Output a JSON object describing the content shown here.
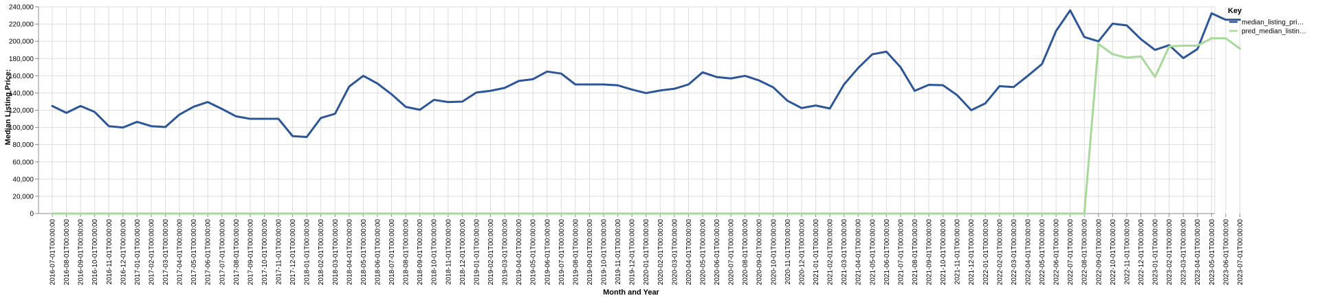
{
  "chart_data": {
    "type": "line",
    "xlabel": "Month and Year",
    "ylabel": "Median Listing Price:",
    "ylim": [
      0,
      240000
    ],
    "yticks": [
      "0",
      "20,000",
      "40,000",
      "60,000",
      "80,000",
      "100,000",
      "120,000",
      "140,000",
      "160,000",
      "180,000",
      "200,000",
      "220,000",
      "240,000"
    ],
    "grid": true,
    "legend": {
      "title": "Key",
      "position": "right"
    },
    "x": [
      "2016-07-01T00:00:00",
      "2016-08-01T00:00:00",
      "2016-09-01T00:00:00",
      "2016-10-01T00:00:00",
      "2016-11-01T00:00:00",
      "2016-12-01T00:00:00",
      "2017-01-01T00:00:00",
      "2017-02-01T00:00:00",
      "2017-03-01T00:00:00",
      "2017-04-01T00:00:00",
      "2017-05-01T00:00:00",
      "2017-06-01T00:00:00",
      "2017-07-01T00:00:00",
      "2017-08-01T00:00:00",
      "2017-09-01T00:00:00",
      "2017-10-01T00:00:00",
      "2017-11-01T00:00:00",
      "2017-12-01T00:00:00",
      "2018-01-01T00:00:00",
      "2018-02-01T00:00:00",
      "2018-03-01T00:00:00",
      "2018-04-01T00:00:00",
      "2018-05-01T00:00:00",
      "2018-06-01T00:00:00",
      "2018-07-01T00:00:00",
      "2018-08-01T00:00:00",
      "2018-09-01T00:00:00",
      "2018-10-01T00:00:00",
      "2018-11-01T00:00:00",
      "2018-12-01T00:00:00",
      "2019-01-01T00:00:00",
      "2019-02-01T00:00:00",
      "2019-03-01T00:00:00",
      "2019-04-01T00:00:00",
      "2019-05-01T00:00:00",
      "2019-06-01T00:00:00",
      "2019-07-01T00:00:00",
      "2019-08-01T00:00:00",
      "2019-09-01T00:00:00",
      "2019-10-01T00:00:00",
      "2019-11-01T00:00:00",
      "2019-12-01T00:00:00",
      "2020-01-01T00:00:00",
      "2020-02-01T00:00:00",
      "2020-03-01T00:00:00",
      "2020-04-01T00:00:00",
      "2020-05-01T00:00:00",
      "2020-06-01T00:00:00",
      "2020-07-01T00:00:00",
      "2020-08-01T00:00:00",
      "2020-09-01T00:00:00",
      "2020-10-01T00:00:00",
      "2020-11-01T00:00:00",
      "2020-12-01T00:00:00",
      "2021-01-01T00:00:00",
      "2021-02-01T00:00:00",
      "2021-03-01T00:00:00",
      "2021-04-01T00:00:00",
      "2021-05-01T00:00:00",
      "2021-06-01T00:00:00",
      "2021-07-01T00:00:00",
      "2021-08-01T00:00:00",
      "2021-09-01T00:00:00",
      "2021-10-01T00:00:00",
      "2021-11-01T00:00:00",
      "2021-12-01T00:00:00",
      "2022-01-01T00:00:00",
      "2022-02-01T00:00:00",
      "2022-03-01T00:00:00",
      "2022-04-01T00:00:00",
      "2022-05-01T00:00:00",
      "2022-06-01T00:00:00",
      "2022-07-01T00:00:00",
      "2022-08-01T00:00:00",
      "2022-09-01T00:00:00",
      "2022-10-01T00:00:00",
      "2022-11-01T00:00:00",
      "2022-12-01T00:00:00",
      "2023-01-01T00:00:00",
      "2023-02-01T00:00:00",
      "2023-03-01T00:00:00",
      "2023-04-01T00:00:00",
      "2023-05-01T00:00:00",
      "2023-06-01T00:00:00",
      "2023-07-01T00:00:00"
    ],
    "series": [
      {
        "name": "median_listing_pri…",
        "color": "#2c5697",
        "values": [
          124900,
          116900,
          124900,
          118000,
          101500,
          99900,
          106500,
          101500,
          100500,
          115000,
          124000,
          129500,
          121500,
          112900,
          110000,
          110000,
          110000,
          89900,
          88900,
          111000,
          115900,
          147500,
          159900,
          151000,
          138500,
          123900,
          120500,
          132000,
          129500,
          130000,
          140500,
          142500,
          145900,
          154000,
          156000,
          164900,
          162500,
          149900,
          149900,
          149900,
          148900,
          144000,
          139900,
          142900,
          144900,
          149900,
          164000,
          158500,
          156900,
          159900,
          154500,
          146500,
          131000,
          122500,
          125500,
          122000,
          149900,
          169000,
          184900,
          188000,
          169900,
          142500,
          149500,
          149000,
          137500,
          120000,
          128000,
          147900,
          146900,
          159900,
          173500,
          212000,
          236000,
          205000,
          200000,
          220500,
          218500,
          202500,
          190000,
          195500,
          180500,
          191000,
          232500,
          225000,
          225000
        ]
      },
      {
        "name": "pred_median_listin…",
        "color": "#a6d99a",
        "values": [
          0,
          0,
          0,
          0,
          0,
          0,
          0,
          0,
          0,
          0,
          0,
          0,
          0,
          0,
          0,
          0,
          0,
          0,
          0,
          0,
          0,
          0,
          0,
          0,
          0,
          0,
          0,
          0,
          0,
          0,
          0,
          0,
          0,
          0,
          0,
          0,
          0,
          0,
          0,
          0,
          0,
          0,
          0,
          0,
          0,
          0,
          0,
          0,
          0,
          0,
          0,
          0,
          0,
          0,
          0,
          0,
          0,
          0,
          0,
          0,
          0,
          0,
          0,
          0,
          0,
          0,
          0,
          0,
          0,
          0,
          0,
          0,
          0,
          0,
          197000,
          185000,
          181000,
          182500,
          158500,
          194000,
          195000,
          195000,
          203500,
          203500,
          191500
        ]
      }
    ]
  }
}
